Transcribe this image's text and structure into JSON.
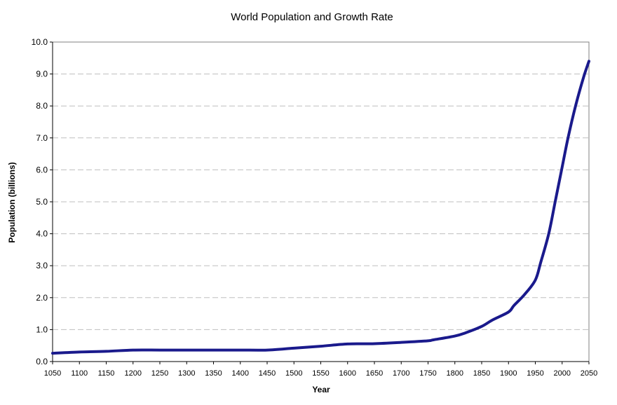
{
  "chart_data": {
    "type": "line",
    "title": "World Population and Growth Rate",
    "xlabel": "Year",
    "ylabel": "Population (billions)",
    "xlim": [
      1050,
      2050
    ],
    "ylim": [
      0,
      10
    ],
    "grid": true,
    "legend": "none",
    "x_ticks": [
      "1050",
      "1100",
      "1150",
      "1200",
      "1250",
      "1300",
      "1350",
      "1400",
      "1450",
      "1500",
      "1550",
      "1600",
      "1650",
      "1700",
      "1750",
      "1800",
      "1850",
      "1900",
      "1950",
      "2000",
      "2050"
    ],
    "y_ticks": [
      "0.0",
      "1.0",
      "2.0",
      "3.0",
      "4.0",
      "5.0",
      "6.0",
      "7.0",
      "8.0",
      "9.0",
      "10.0"
    ],
    "colors": {
      "series": "#1a1a8c",
      "grid": "#bfbfbf",
      "axis": "#808080"
    },
    "series": [
      {
        "name": "Population",
        "x": [
          1050,
          1100,
          1150,
          1200,
          1250,
          1300,
          1350,
          1400,
          1450,
          1500,
          1550,
          1600,
          1650,
          1700,
          1750,
          1760,
          1800,
          1820,
          1850,
          1870,
          1900,
          1910,
          1930,
          1950,
          1960,
          1975,
          1987,
          1999,
          2011,
          2025,
          2040,
          2050
        ],
        "values": [
          0.26,
          0.3,
          0.32,
          0.36,
          0.36,
          0.36,
          0.36,
          0.36,
          0.36,
          0.42,
          0.48,
          0.55,
          0.56,
          0.6,
          0.65,
          0.68,
          0.8,
          0.9,
          1.1,
          1.3,
          1.55,
          1.75,
          2.1,
          2.55,
          3.1,
          4.0,
          5.0,
          6.0,
          7.0,
          8.0,
          8.9,
          9.4
        ]
      }
    ]
  }
}
